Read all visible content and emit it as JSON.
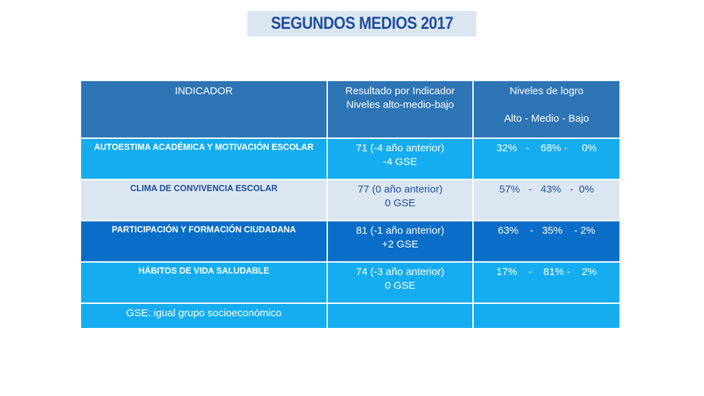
{
  "title": "SEGUNDOS MEDIOS 2017",
  "table": {
    "headers": {
      "indicador": "INDICADOR",
      "resultado_line1": "Resultado por  Indicador",
      "resultado_line2": "Niveles alto-medio-bajo",
      "niveles_line1": "Niveles  de logro",
      "niveles_line2": "Alto   -  Medio  -  Bajo"
    },
    "rows": [
      {
        "indicador": "AUTOESTIMA ACADÉMICA Y MOTIVACIÓN ESCOLAR",
        "resultado_line1": "71 (-4 año anterior)",
        "resultado_line2": "-4 GSE",
        "niveles": "32%   -    68% -     0%"
      },
      {
        "indicador": "CLIMA DE CONVIVENCIA ESCOLAR",
        "resultado_line1": "77 (0 año anterior)",
        "resultado_line2": "0 GSE",
        "niveles": "57%   -   43%   -  0%"
      },
      {
        "indicador": "PARTICIPACIÓN Y FORMACIÓN CIUDADANA",
        "resultado_line1": "81 (-1 año anterior)",
        "resultado_line2": "+2 GSE",
        "niveles": "63%    -   35%    - 2%"
      },
      {
        "indicador": "HÁBITOS DE VIDA SALUDABLE",
        "resultado_line1": "74 (-3 año anterior)",
        "resultado_line2": "0 GSE",
        "niveles": "17%    -    81% -    2%"
      }
    ],
    "footnote": "GSE: igual grupo socioeconómico"
  },
  "colors": {
    "title_bg": "#dce6f1",
    "title_text": "#1f4e9c",
    "header_bg": "#2e75b6",
    "cyan_row": "#15adef",
    "light_row": "#dce6f1",
    "dark_row": "#0a6ec8"
  }
}
